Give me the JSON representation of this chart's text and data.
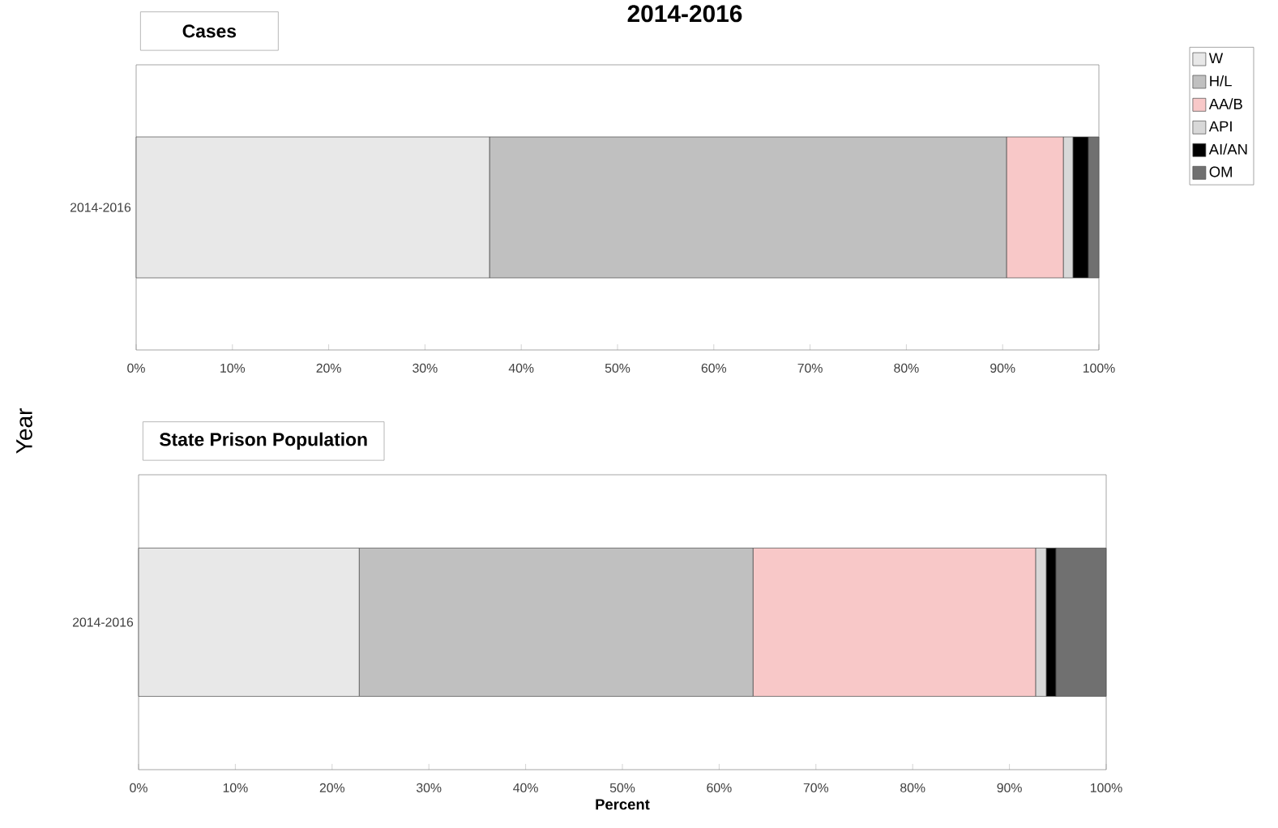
{
  "chart_data": [
    {
      "type": "bar",
      "orientation": "horizontal",
      "stacked": true,
      "title": "2014-2016",
      "subtitle": "Cases",
      "ylabel": "Year",
      "categories": [
        "2014-2016"
      ],
      "series": [
        {
          "name": "W",
          "color": "#e8e8e8",
          "values": [
            36.7
          ]
        },
        {
          "name": "H/L",
          "color": "#c0c0c0",
          "values": [
            53.7
          ]
        },
        {
          "name": "AA/B",
          "color": "#f8c8c8",
          "values": [
            5.9
          ]
        },
        {
          "name": "API",
          "color": "#d8d8d8",
          "values": [
            1.0
          ]
        },
        {
          "name": "AI/AN",
          "color": "#000000",
          "values": [
            1.6
          ]
        },
        {
          "name": "OM",
          "color": "#707070",
          "values": [
            1.1
          ]
        }
      ],
      "xlim": [
        0,
        100
      ],
      "xticks": [
        {
          "value": 0,
          "label": "0%"
        },
        {
          "value": 10,
          "label": "10%"
        },
        {
          "value": 20,
          "label": "20%"
        },
        {
          "value": 30,
          "label": "30%"
        },
        {
          "value": 40,
          "label": "40%"
        },
        {
          "value": 50,
          "label": "50%"
        },
        {
          "value": 60,
          "label": "60%"
        },
        {
          "value": 70,
          "label": "70%"
        },
        {
          "value": 80,
          "label": "80%"
        },
        {
          "value": 90,
          "label": "90%"
        },
        {
          "value": 100,
          "label": "100%"
        }
      ],
      "legend": "right"
    },
    {
      "type": "bar",
      "orientation": "horizontal",
      "stacked": true,
      "subtitle": "State Prison Population",
      "xlabel": "Percent",
      "categories": [
        "2014-2016"
      ],
      "series": [
        {
          "color": "#e8e8e8",
          "values": [
            22.8
          ]
        },
        {
          "color": "#c0c0c0",
          "values": [
            40.7
          ]
        },
        {
          "color": "#f8c8c8",
          "values": [
            29.2
          ]
        },
        {
          "color": "#d8d8d8",
          "values": [
            1.1
          ]
        },
        {
          "color": "#000000",
          "values": [
            1.0
          ]
        },
        {
          "color": "#707070",
          "values": [
            5.2
          ]
        }
      ],
      "xlim": [
        0,
        100
      ],
      "xticks": [
        {
          "value": 0,
          "label": "0%"
        },
        {
          "value": 10,
          "label": "10%"
        },
        {
          "value": 20,
          "label": "20%"
        },
        {
          "value": 30,
          "label": "30%"
        },
        {
          "value": 40,
          "label": "40%"
        },
        {
          "value": 50,
          "label": "50%"
        },
        {
          "value": 60,
          "label": "60%"
        },
        {
          "value": 70,
          "label": "70%"
        },
        {
          "value": 80,
          "label": "80%"
        },
        {
          "value": 90,
          "label": "90%"
        },
        {
          "value": 100,
          "label": "100%"
        }
      ]
    }
  ]
}
